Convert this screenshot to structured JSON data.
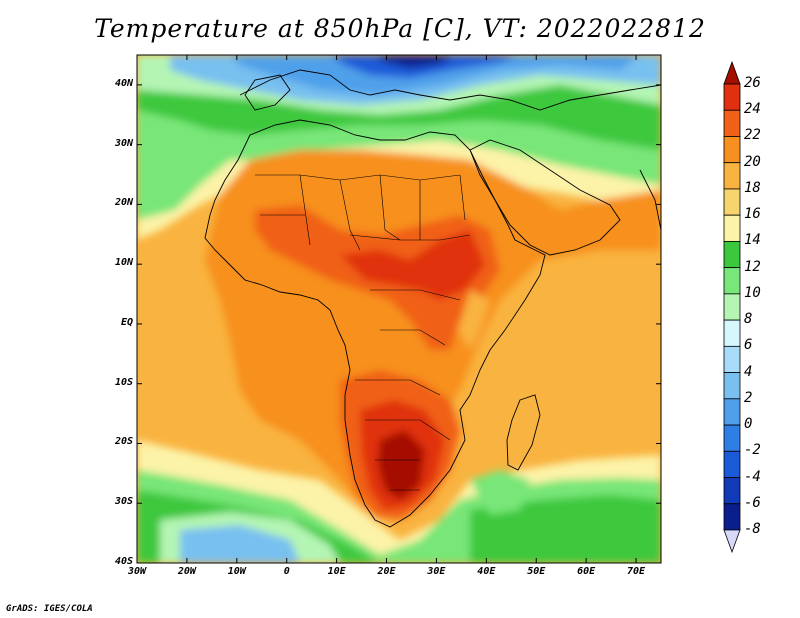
{
  "title": "Temperature at 850hPa [C], VT: 2022022812",
  "credit": "GrADS: IGES/COLA",
  "lat_labels": [
    "40N",
    "30N",
    "20N",
    "10N",
    "EQ",
    "10S",
    "20S",
    "30S",
    "40S"
  ],
  "lon_labels": [
    "30W",
    "20W",
    "10W",
    "0",
    "10E",
    "20E",
    "30E",
    "40E",
    "50E",
    "60E",
    "70E"
  ],
  "colorbar": {
    "labels": [
      "26",
      "24",
      "22",
      "20",
      "18",
      "16",
      "14",
      "12",
      "10",
      "8",
      "6",
      "4",
      "2",
      "0",
      "-2",
      "-4",
      "-6",
      "-8"
    ],
    "colors": [
      "#a50f00",
      "#e03010",
      "#f06018",
      "#f7901f",
      "#f9b340",
      "#f7d56e",
      "#fcf3a8",
      "#3cc83c",
      "#78e678",
      "#b4f5b4",
      "#d6f8fc",
      "#a8dcf8",
      "#78c0f0",
      "#4fa0ea",
      "#2e7ee6",
      "#1a5ad8",
      "#103ab8",
      "#0a1e8c",
      "#050a5a"
    ]
  },
  "map": {
    "type": "filled-contour",
    "variable": "Temperature at 850hPa",
    "units": "C",
    "lon_range": [
      -30,
      75
    ],
    "lat_range": [
      -40,
      45
    ],
    "colors": {
      "ocean_warm": "#f9b340",
      "sea_cool": "#3cc83c",
      "cold": "#4fa0ea",
      "very_cold": "#0a1e8c",
      "hot": "#e03010",
      "hottest": "#a50f00"
    }
  }
}
